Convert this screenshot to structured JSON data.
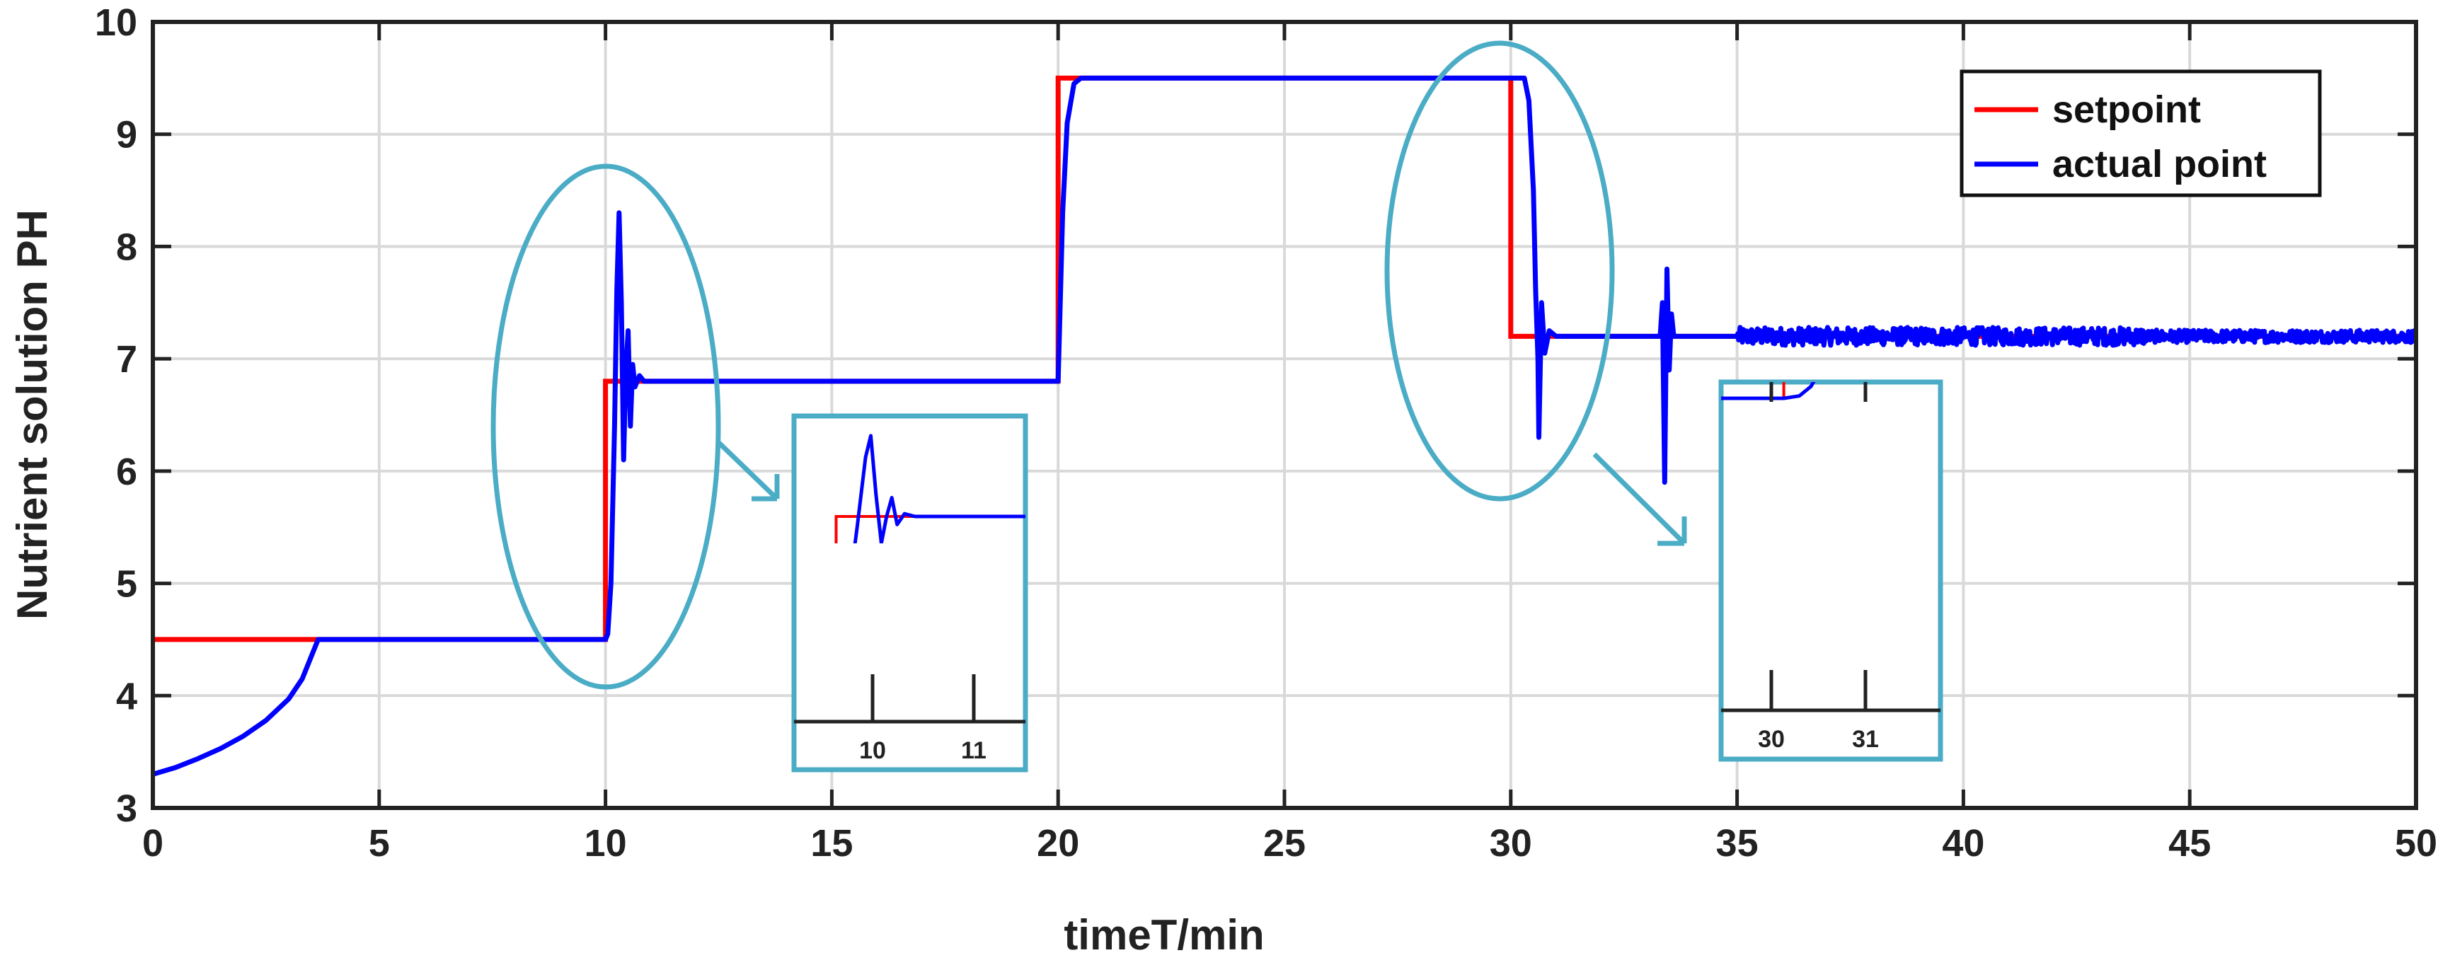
{
  "chart_data": {
    "type": "line",
    "xlabel": "timeT/min",
    "ylabel": "Nutrient solution PH",
    "xlim": [
      0,
      50
    ],
    "ylim": [
      3,
      10
    ],
    "x_ticks": [
      0,
      5,
      10,
      15,
      20,
      25,
      30,
      35,
      40,
      45,
      50
    ],
    "y_ticks": [
      3,
      4,
      5,
      6,
      7,
      8,
      9,
      10
    ],
    "grid": true,
    "legend_position": "top-right",
    "colors": {
      "setpoint": "#ff0000",
      "actual": "#0000ff",
      "annotation": "#4bacc6"
    },
    "series": [
      {
        "name": "setpoint",
        "color": "#ff0000",
        "points": [
          [
            0,
            4.5
          ],
          [
            10,
            4.5
          ],
          [
            10,
            6.8
          ],
          [
            20,
            6.8
          ],
          [
            20,
            9.5
          ],
          [
            30,
            9.5
          ],
          [
            30,
            7.2
          ],
          [
            50,
            7.2
          ]
        ]
      },
      {
        "name": "actual point",
        "color": "#0000ff",
        "points": [
          [
            0,
            3.3
          ],
          [
            0.5,
            3.36
          ],
          [
            1,
            3.44
          ],
          [
            1.5,
            3.53
          ],
          [
            2,
            3.64
          ],
          [
            2.5,
            3.78
          ],
          [
            3,
            3.97
          ],
          [
            3.3,
            4.15
          ],
          [
            3.5,
            4.35
          ],
          [
            3.65,
            4.5
          ],
          [
            10,
            4.5
          ],
          [
            10.05,
            4.55
          ],
          [
            10.12,
            5.0
          ],
          [
            10.2,
            6.4
          ],
          [
            10.25,
            7.6
          ],
          [
            10.3,
            8.3
          ],
          [
            10.35,
            7.5
          ],
          [
            10.4,
            6.1
          ],
          [
            10.45,
            6.9
          ],
          [
            10.5,
            7.25
          ],
          [
            10.55,
            6.4
          ],
          [
            10.6,
            6.95
          ],
          [
            10.65,
            6.75
          ],
          [
            10.75,
            6.85
          ],
          [
            10.85,
            6.8
          ],
          [
            20,
            6.8
          ],
          [
            20.1,
            8.3
          ],
          [
            20.2,
            9.1
          ],
          [
            20.35,
            9.45
          ],
          [
            20.5,
            9.5
          ],
          [
            30.3,
            9.5
          ],
          [
            30.4,
            9.3
          ],
          [
            30.5,
            8.5
          ],
          [
            30.55,
            7.6
          ],
          [
            30.6,
            7.0
          ],
          [
            30.62,
            6.3
          ],
          [
            30.68,
            7.5
          ],
          [
            30.75,
            7.05
          ],
          [
            30.85,
            7.25
          ],
          [
            31,
            7.2
          ],
          [
            33.3,
            7.2
          ],
          [
            33.35,
            7.5
          ],
          [
            33.4,
            5.9
          ],
          [
            33.45,
            7.8
          ],
          [
            33.5,
            6.9
          ],
          [
            33.55,
            7.4
          ],
          [
            33.6,
            7.2
          ],
          [
            35,
            7.2
          ]
        ],
        "noise": {
          "x_range": [
            35,
            50
          ],
          "center": 7.2,
          "amplitude": 0.08
        }
      }
    ],
    "insets": [
      {
        "ticks": [
          "10",
          "11"
        ],
        "detail_of": [
          9.6,
          11.8
        ]
      },
      {
        "ticks": [
          "30",
          "31"
        ],
        "detail_of": [
          29.2,
          32.0
        ]
      }
    ]
  }
}
